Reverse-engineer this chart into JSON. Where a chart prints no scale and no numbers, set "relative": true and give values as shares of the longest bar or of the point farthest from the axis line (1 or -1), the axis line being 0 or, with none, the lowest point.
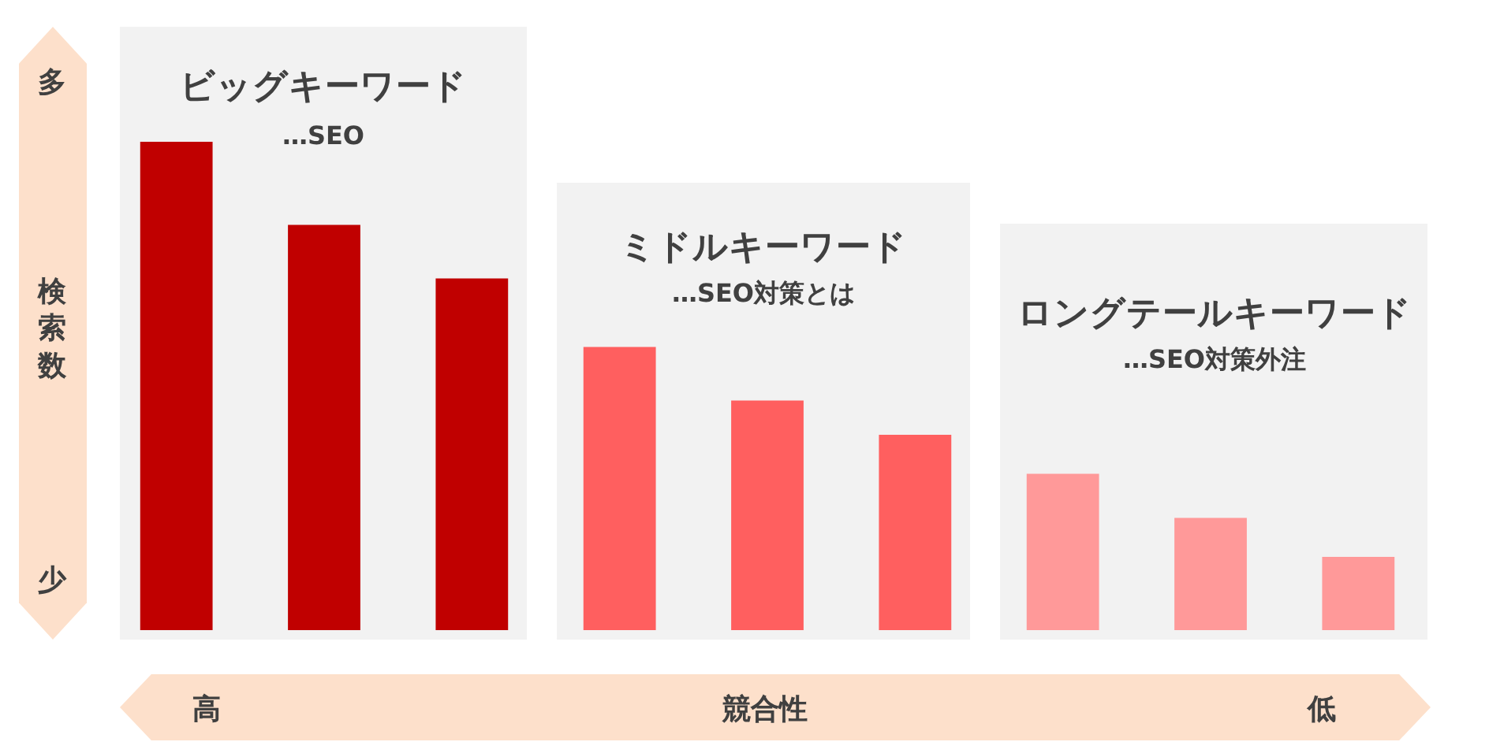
{
  "chart_data": {
    "type": "bar",
    "relative": true,
    "xlabel": "競合性",
    "ylabel": "検索数",
    "categories": [
      null,
      null,
      null,
      null,
      null,
      null,
      null,
      null,
      null
    ],
    "values": [
      1,
      0.83,
      0.72,
      0.58,
      0.47,
      0.4,
      0.32,
      0.23,
      0.15
    ],
    "colors": [
      "#c00000",
      "#c00000",
      "#c00000",
      "#ff5f5f",
      "#ff5f5f",
      "#ff5f5f",
      "#ff9999",
      "#ff9999",
      "#ff9999"
    ],
    "annotations": [
      "ビッグキーワード",
      "…SEO",
      "ミドルキーワード",
      "…SEO対策とは",
      "ロングテールキーワード",
      "…SEO対策外注",
      "多",
      "少",
      "高",
      "低"
    ],
    "legend": false
  }
}
